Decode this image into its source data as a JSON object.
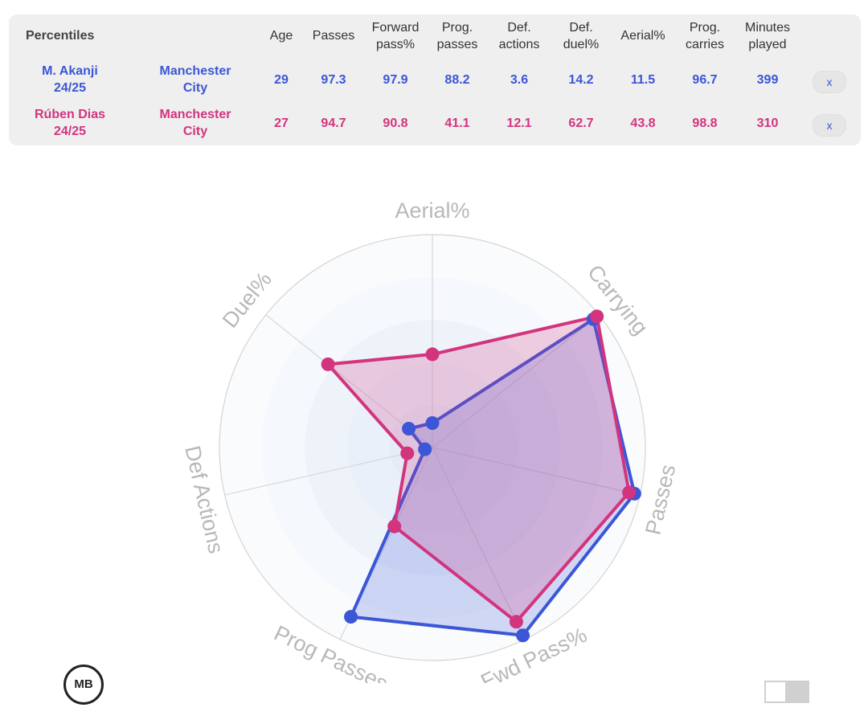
{
  "table": {
    "corner_label": "Percentiles",
    "columns": [
      {
        "l1": "Age",
        "l2": ""
      },
      {
        "l1": "Passes",
        "l2": ""
      },
      {
        "l1": "Forward",
        "l2": "pass%"
      },
      {
        "l1": "Prog.",
        "l2": "passes"
      },
      {
        "l1": "Def.",
        "l2": "actions"
      },
      {
        "l1": "Def.",
        "l2": "duel%"
      },
      {
        "l1": "Aerial%",
        "l2": ""
      },
      {
        "l1": "Prog.",
        "l2": "carries"
      },
      {
        "l1": "Minutes",
        "l2": "played"
      }
    ],
    "rows": [
      {
        "name": "M. Akanji",
        "season": "24/25",
        "club_l1": "Manchester",
        "club_l2": "City",
        "values": [
          "29",
          "97.3",
          "97.9",
          "88.2",
          "3.6",
          "14.2",
          "11.5",
          "96.7",
          "399"
        ],
        "remove_label": "x"
      },
      {
        "name": "Rúben Dias",
        "season": "24/25",
        "club_l1": "Manchester",
        "club_l2": "City",
        "values": [
          "27",
          "94.7",
          "90.8",
          "41.1",
          "12.1",
          "62.7",
          "43.8",
          "98.8",
          "310"
        ],
        "remove_label": "x"
      }
    ]
  },
  "colors": {
    "akanji": "#3b56d6",
    "dias": "#d2347e"
  },
  "chart_data": {
    "type": "radar",
    "axes": [
      "Aerial%",
      "Carrying",
      "Passes",
      "Fwd Pass%",
      "Prog Passes",
      "Def Actions",
      "Duel%"
    ],
    "range": [
      0,
      100
    ],
    "series": [
      {
        "name": "M. Akanji",
        "values": [
          11.5,
          96.7,
          97.3,
          97.9,
          88.2,
          3.6,
          14.2
        ],
        "color": "#3b56d6"
      },
      {
        "name": "Rúben Dias",
        "values": [
          43.8,
          98.8,
          94.7,
          90.8,
          41.1,
          12.1,
          62.7
        ],
        "color": "#d2347e"
      }
    ]
  },
  "logo_text": "MB"
}
